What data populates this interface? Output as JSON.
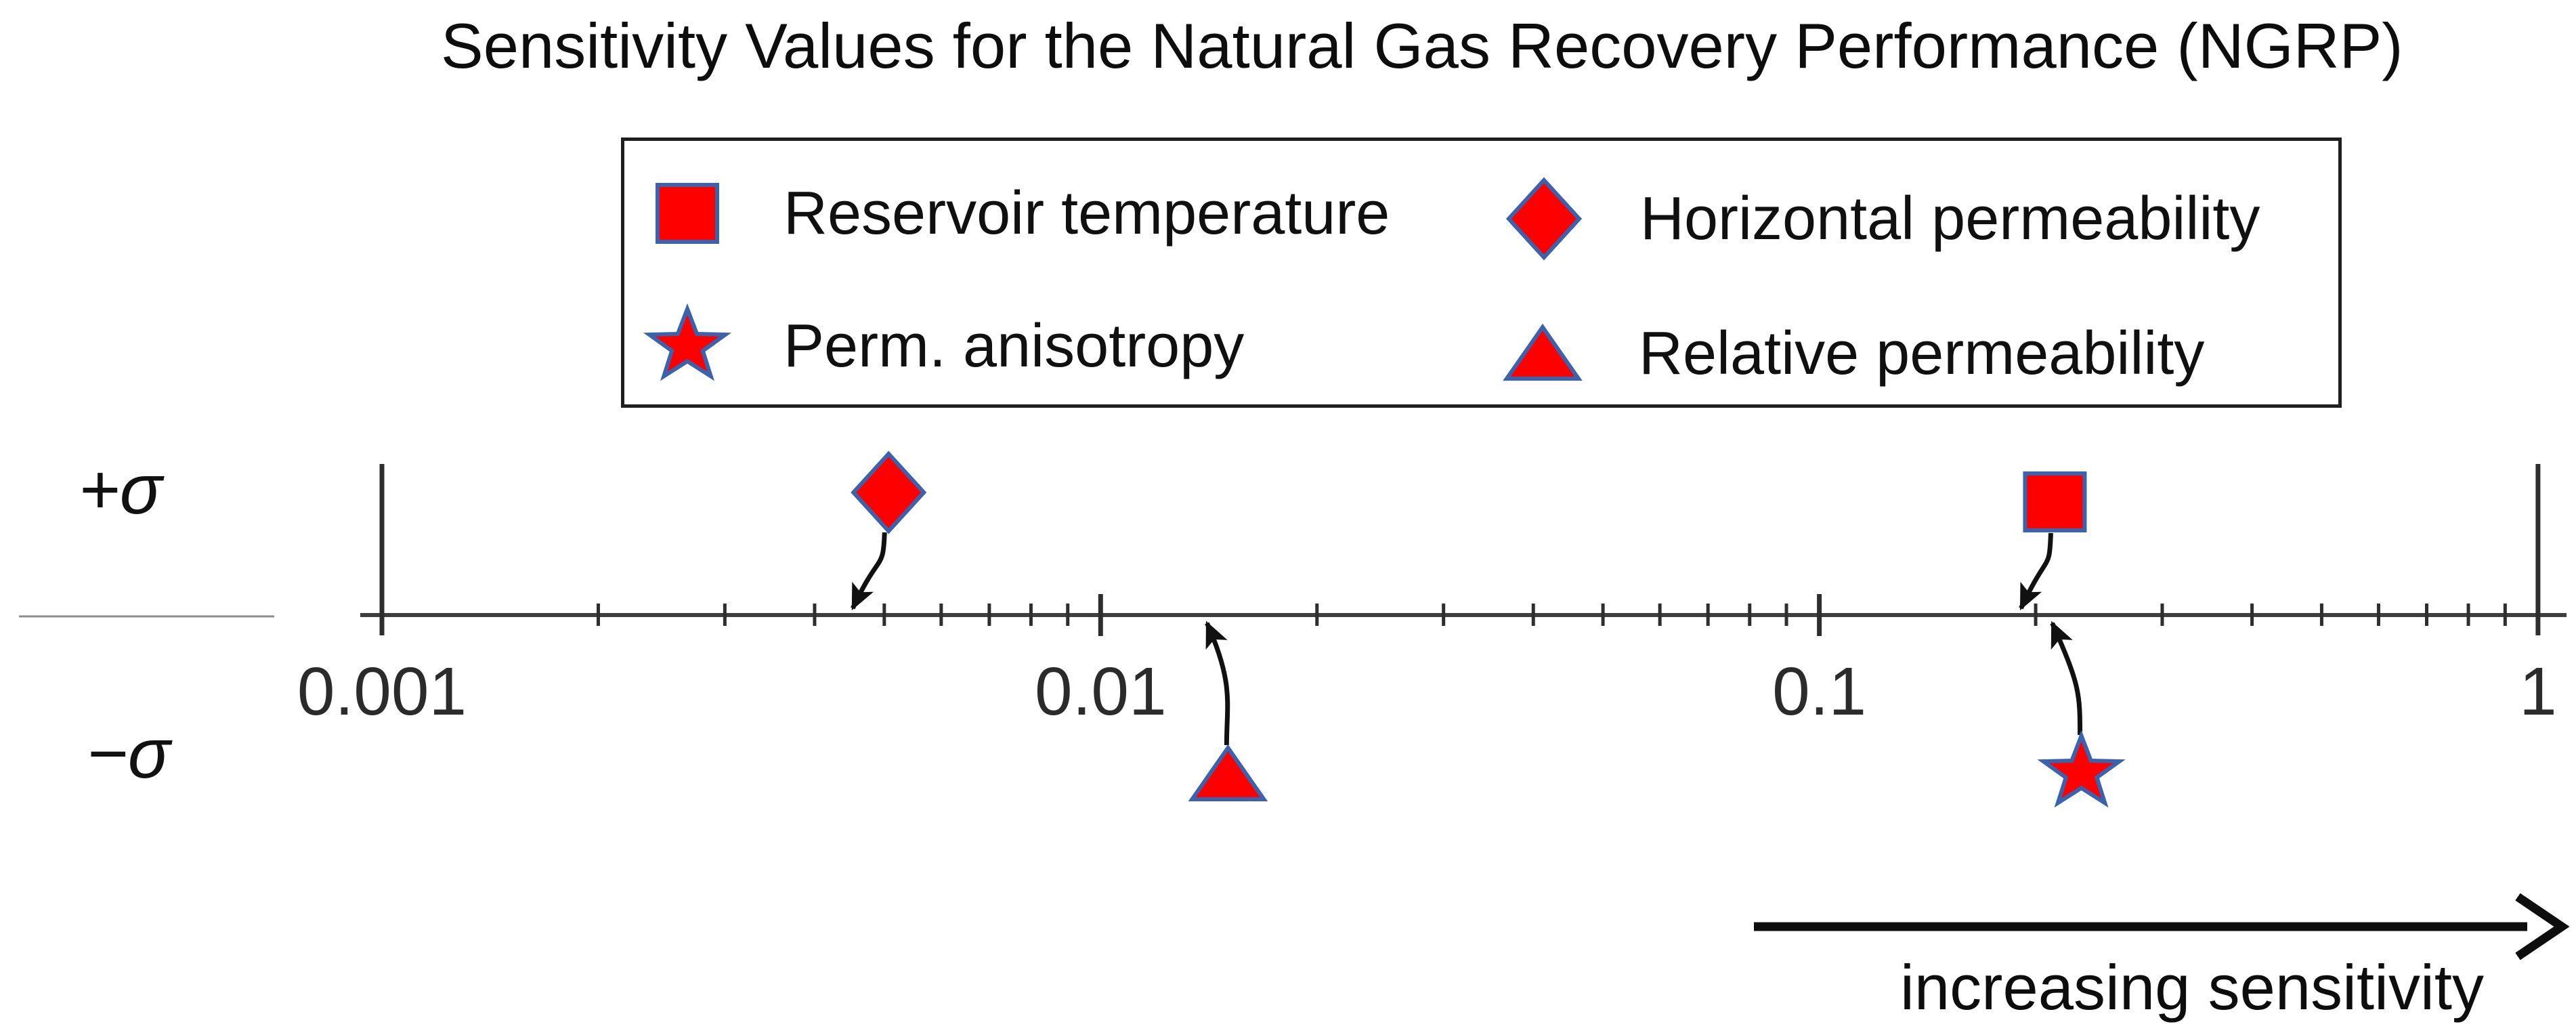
{
  "chart_data": {
    "type": "scatter",
    "title": "Sensitivity Values for the Natural Gas Recovery Performance (NGRP)",
    "x_axis": {
      "scale": "log",
      "min": 0.001,
      "max": 1,
      "ticks": [
        {
          "label": "0.001",
          "value": 0.001
        },
        {
          "label": "0.01",
          "value": 0.01
        },
        {
          "label": "0.1",
          "value": 0.1
        },
        {
          "label": "1",
          "value": 1
        }
      ],
      "minor_ticks": "multiples 2-9 of each decade"
    },
    "row_labels": {
      "plus": "+σ",
      "minus": "−σ"
    },
    "points": [
      {
        "name": "Horizontal permeability",
        "marker": "diamond",
        "row": "+σ",
        "value": 0.0045
      },
      {
        "name": "Reservoir temperature",
        "marker": "square",
        "row": "+σ",
        "value": 0.19
      },
      {
        "name": "Relative permeability",
        "marker": "triangle",
        "row": "−σ",
        "value": 0.014
      },
      {
        "name": "Perm. anisotropy",
        "marker": "star",
        "row": "−σ",
        "value": 0.21
      }
    ],
    "legend": {
      "items": [
        {
          "label": "Reservoir temperature",
          "marker": "square"
        },
        {
          "label": "Horizontal permeability",
          "marker": "diamond"
        },
        {
          "label": "Perm. anisotropy",
          "marker": "star"
        },
        {
          "label": "Relative permeability",
          "marker": "triangle"
        }
      ],
      "position": "top-center, boxed"
    },
    "annotation": {
      "arrow_label": "increasing sensitivity",
      "arrow_direction": "right"
    },
    "grid": "off",
    "colors": {
      "marker_fill": "#ff0000",
      "marker_border": "#3b63ad",
      "axis_line": "#3f3f3f",
      "tick": "#2e2e2e",
      "text": "#0d0d0d"
    }
  }
}
